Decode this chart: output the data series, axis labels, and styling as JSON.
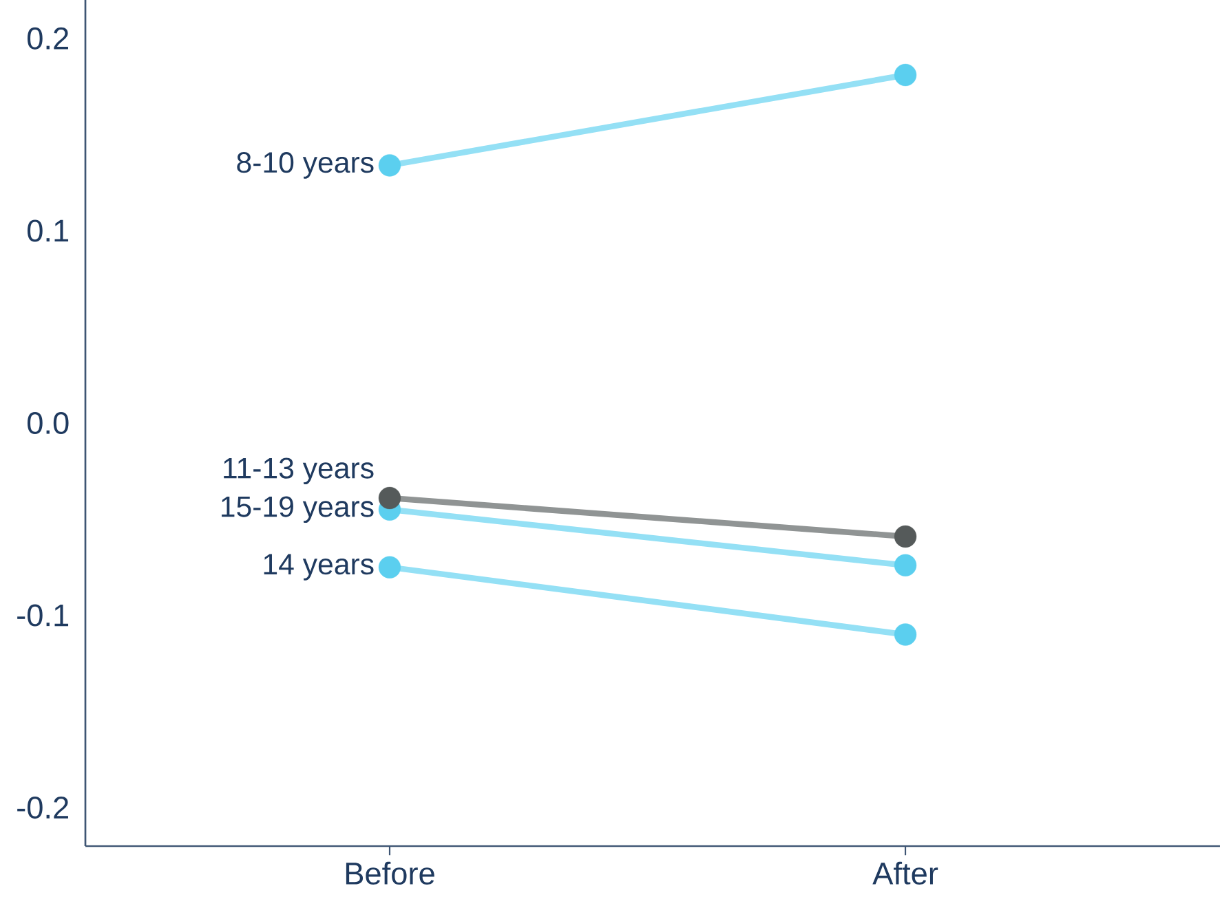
{
  "chart_data": {
    "type": "line",
    "categories": [
      "Before",
      "After"
    ],
    "series": [
      {
        "name": "8-10 years",
        "color": "#5bcfef",
        "values": [
          0.134,
          0.181
        ]
      },
      {
        "name": "15-19 years",
        "color": "#5bcfef",
        "values": [
          -0.045,
          -0.074
        ]
      },
      {
        "name": "14 years",
        "color": "#5bcfef",
        "values": [
          -0.075,
          -0.11
        ]
      },
      {
        "name": "11-13 years",
        "color": "#555a5a",
        "values": [
          -0.039,
          -0.059
        ]
      }
    ],
    "ylim": [
      -0.22,
      0.22
    ],
    "yticks": [
      -0.2,
      -0.1,
      {
        "value": 0,
        "label": "0.0"
      },
      0.1,
      0.2
    ],
    "grid": false,
    "legend": false,
    "marker": "circle",
    "line_style": "solid"
  }
}
